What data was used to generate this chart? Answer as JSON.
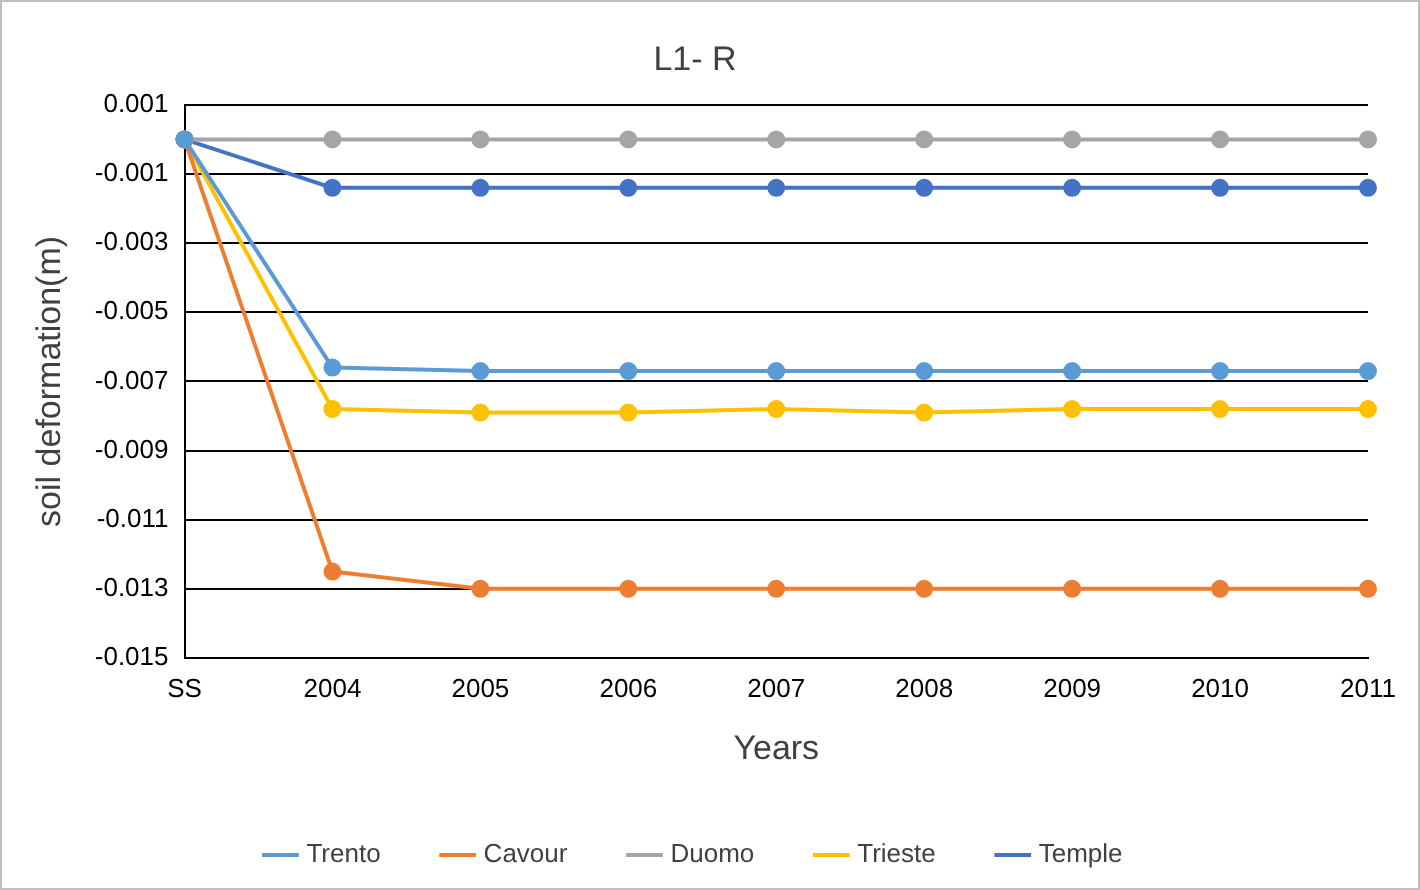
{
  "chart_data": {
    "type": "line",
    "title": "L1- R",
    "xlabel": "Years",
    "ylabel": "soil deformation(m)",
    "categories": [
      "SS",
      "2004",
      "2005",
      "2006",
      "2007",
      "2008",
      "2009",
      "2010",
      "2011"
    ],
    "series": [
      {
        "name": "Trento",
        "color": "#5b9bd5",
        "values": [
          0,
          -0.0066,
          -0.0067,
          -0.0067,
          -0.0067,
          -0.0067,
          -0.0067,
          -0.0067,
          -0.0067
        ]
      },
      {
        "name": "Cavour",
        "color": "#ed7d31",
        "values": [
          0,
          -0.0125,
          -0.013,
          -0.013,
          -0.013,
          -0.013,
          -0.013,
          -0.013,
          -0.013
        ]
      },
      {
        "name": "Duomo",
        "color": "#a5a5a5",
        "values": [
          0,
          0,
          0,
          0,
          0,
          0,
          0,
          0,
          0
        ]
      },
      {
        "name": "Trieste",
        "color": "#ffc000",
        "values": [
          0,
          -0.0078,
          -0.0079,
          -0.0079,
          -0.0078,
          -0.0079,
          -0.0078,
          -0.0078,
          -0.0078
        ]
      },
      {
        "name": "Temple",
        "color": "#4472c4",
        "values": [
          0,
          -0.0014,
          -0.0014,
          -0.0014,
          -0.0014,
          -0.0014,
          -0.0014,
          -0.0014,
          -0.0014
        ]
      }
    ],
    "ylim": [
      -0.015,
      0.001
    ],
    "yticks": [
      0.001,
      -0.001,
      -0.003,
      -0.005,
      -0.007,
      -0.009,
      -0.011,
      -0.013,
      -0.015
    ],
    "grid": "y",
    "legend": "bottom",
    "marker": "circle",
    "line_style": "solid"
  }
}
